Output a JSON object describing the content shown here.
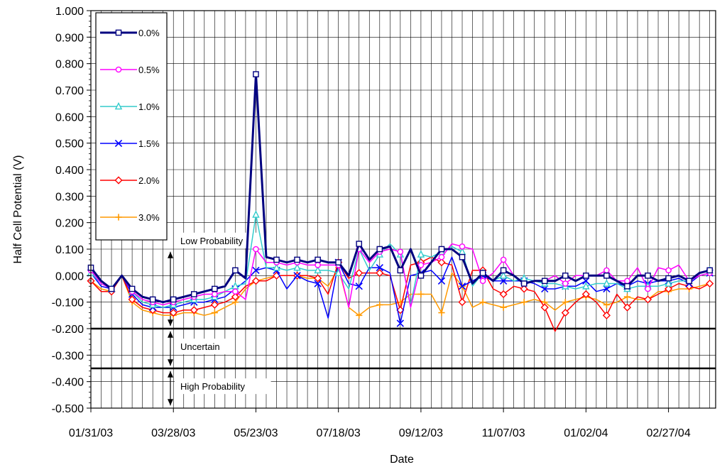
{
  "chart_data": {
    "type": "line",
    "xlabel": "Date",
    "ylabel": "Half Cell Potential (V)",
    "xlim": [
      "2003-01-31",
      "2004-03-30"
    ],
    "ylim": [
      -0.5,
      1.0
    ],
    "y_ticks": [
      "1.000",
      "0.900",
      "0.800",
      "0.700",
      "0.600",
      "0.500",
      "0.400",
      "0.300",
      "0.200",
      "0.100",
      "0.000",
      "-0.100",
      "-0.200",
      "-0.300",
      "-0.400",
      "-0.500"
    ],
    "x_ticks": [
      "01/31/03",
      "03/28/03",
      "05/23/03",
      "07/18/03",
      "09/12/03",
      "11/07/03",
      "01/02/04",
      "02/27/04"
    ],
    "x_tick_dates": [
      "2003-01-31",
      "2003-03-28",
      "2003-05-23",
      "2003-07-18",
      "2003-09-12",
      "2003-11-07",
      "2004-01-02",
      "2004-02-27"
    ],
    "grid": "vertical major and minor gridlines, horizontal major gridlines",
    "legend": {
      "placement": "top-left inside plot"
    },
    "thresholds": [
      {
        "value": -0.2,
        "kind": "threshold line"
      },
      {
        "value": -0.35,
        "kind": "threshold line"
      }
    ],
    "annotations": [
      {
        "text": "Low Probability",
        "y": 0.13
      },
      {
        "text": "Uncertain",
        "y": -0.27
      },
      {
        "text": "High Probability",
        "y": -0.42
      }
    ],
    "x": [
      "2003-01-31",
      "2003-02-07",
      "2003-02-14",
      "2003-02-21",
      "2003-02-28",
      "2003-03-07",
      "2003-03-14",
      "2003-03-21",
      "2003-03-28",
      "2003-04-04",
      "2003-04-11",
      "2003-04-18",
      "2003-04-25",
      "2003-05-02",
      "2003-05-09",
      "2003-05-16",
      "2003-05-23",
      "2003-05-30",
      "2003-06-06",
      "2003-06-13",
      "2003-06-20",
      "2003-06-27",
      "2003-07-04",
      "2003-07-11",
      "2003-07-18",
      "2003-07-25",
      "2003-08-01",
      "2003-08-08",
      "2003-08-15",
      "2003-08-22",
      "2003-08-29",
      "2003-09-05",
      "2003-09-12",
      "2003-09-19",
      "2003-09-26",
      "2003-10-03",
      "2003-10-10",
      "2003-10-17",
      "2003-10-24",
      "2003-10-31",
      "2003-11-07",
      "2003-11-14",
      "2003-11-21",
      "2003-11-28",
      "2003-12-05",
      "2003-12-12",
      "2003-12-19",
      "2003-12-26",
      "2004-01-02",
      "2004-01-09",
      "2004-01-16",
      "2004-01-23",
      "2004-01-30",
      "2004-02-06",
      "2004-02-13",
      "2004-02-20",
      "2004-02-27",
      "2004-03-05",
      "2004-03-12",
      "2004-03-19",
      "2004-03-26"
    ],
    "series": [
      {
        "name": "0.0%",
        "color": "#000080",
        "marker": "square",
        "values": [
          0.03,
          -0.02,
          -0.05,
          0.0,
          -0.05,
          -0.08,
          -0.09,
          -0.1,
          -0.09,
          -0.08,
          -0.07,
          -0.06,
          -0.05,
          -0.04,
          0.02,
          -0.01,
          0.76,
          0.07,
          0.06,
          0.05,
          0.06,
          0.05,
          0.06,
          0.05,
          0.05,
          0.0,
          0.12,
          0.06,
          0.1,
          0.11,
          0.02,
          0.1,
          0.0,
          0.05,
          0.1,
          0.1,
          0.07,
          -0.03,
          0.01,
          -0.02,
          0.02,
          0.0,
          -0.03,
          -0.02,
          -0.02,
          -0.02,
          0.0,
          -0.02,
          0.0,
          0.0,
          0.0,
          -0.02,
          -0.04,
          0.0,
          0.0,
          -0.02,
          -0.01,
          0.0,
          -0.02,
          0.01,
          0.02
        ]
      },
      {
        "name": "0.5%",
        "color": "#FF00FF",
        "marker": "circle",
        "values": [
          0.02,
          -0.03,
          -0.05,
          0.0,
          -0.06,
          -0.09,
          -0.1,
          -0.11,
          -0.1,
          -0.09,
          -0.08,
          -0.07,
          -0.07,
          -0.06,
          -0.06,
          -0.09,
          0.1,
          0.05,
          0.05,
          0.04,
          0.05,
          0.04,
          0.04,
          0.04,
          0.04,
          -0.12,
          0.1,
          0.05,
          0.09,
          0.1,
          0.09,
          -0.12,
          0.04,
          0.05,
          0.07,
          0.12,
          0.11,
          0.1,
          -0.02,
          0.01,
          0.06,
          0.0,
          -0.03,
          -0.02,
          -0.02,
          0.0,
          -0.03,
          0.0,
          0.0,
          0.0,
          0.02,
          -0.02,
          -0.02,
          0.03,
          -0.05,
          0.03,
          0.02,
          0.04,
          -0.02,
          0.0,
          0.01
        ]
      },
      {
        "name": "1.0%",
        "color": "#33CCCC",
        "marker": "triangle",
        "values": [
          0.01,
          -0.03,
          -0.05,
          0.0,
          -0.06,
          -0.1,
          -0.11,
          -0.12,
          -0.11,
          -0.1,
          -0.09,
          -0.09,
          -0.08,
          -0.06,
          -0.04,
          -0.03,
          0.23,
          0.03,
          0.03,
          0.02,
          0.03,
          0.02,
          0.02,
          0.02,
          0.01,
          -0.05,
          0.1,
          0.02,
          0.08,
          0.12,
          0.08,
          -0.11,
          0.08,
          0.07,
          0.09,
          0.11,
          0.09,
          -0.04,
          0.01,
          -0.02,
          0.0,
          -0.02,
          -0.01,
          -0.02,
          -0.03,
          -0.03,
          -0.04,
          -0.05,
          -0.04,
          -0.03,
          -0.03,
          -0.03,
          -0.05,
          -0.04,
          -0.04,
          -0.04,
          -0.03,
          -0.02,
          -0.02,
          0.01,
          0.02
        ]
      },
      {
        "name": "1.5%",
        "color": "#0000FF",
        "marker": "x",
        "values": [
          0.01,
          -0.04,
          -0.05,
          0.0,
          -0.07,
          -0.11,
          -0.12,
          -0.12,
          -0.12,
          -0.11,
          -0.1,
          -0.1,
          -0.09,
          -0.08,
          -0.05,
          -0.02,
          0.02,
          0.03,
          0.02,
          -0.05,
          0.0,
          -0.02,
          -0.03,
          -0.16,
          0.05,
          -0.03,
          -0.04,
          0.03,
          0.03,
          0.01,
          -0.18,
          0.0,
          0.01,
          0.02,
          -0.02,
          0.07,
          -0.04,
          -0.02,
          0.0,
          -0.02,
          -0.02,
          -0.02,
          -0.02,
          -0.03,
          -0.05,
          -0.05,
          -0.04,
          -0.04,
          -0.02,
          -0.06,
          -0.05,
          -0.03,
          -0.04,
          -0.02,
          -0.03,
          -0.02,
          -0.02,
          -0.01,
          -0.03,
          0.0,
          0.01
        ]
      },
      {
        "name": "2.0%",
        "color": "#FF0000",
        "marker": "diamond",
        "values": [
          -0.02,
          -0.06,
          -0.06,
          0.0,
          -0.09,
          -0.12,
          -0.13,
          -0.14,
          -0.14,
          -0.13,
          -0.13,
          -0.12,
          -0.11,
          -0.1,
          -0.08,
          -0.04,
          -0.02,
          -0.02,
          0.0,
          0.0,
          0.0,
          0.0,
          -0.01,
          -0.07,
          0.05,
          -0.01,
          0.01,
          0.01,
          0.01,
          0.0,
          -0.13,
          0.04,
          0.05,
          0.07,
          0.05,
          0.04,
          -0.1,
          0.02,
          0.02,
          -0.05,
          -0.07,
          -0.04,
          -0.05,
          -0.06,
          -0.12,
          -0.21,
          -0.14,
          -0.1,
          -0.07,
          -0.1,
          -0.15,
          -0.07,
          -0.12,
          -0.08,
          -0.09,
          -0.07,
          -0.05,
          -0.03,
          -0.04,
          -0.05,
          -0.03
        ]
      },
      {
        "name": "3.0%",
        "color": "#FF9900",
        "marker": "plus",
        "values": [
          -0.02,
          -0.05,
          -0.06,
          0.0,
          -0.1,
          -0.13,
          -0.14,
          -0.15,
          -0.15,
          -0.14,
          -0.14,
          -0.15,
          -0.14,
          -0.12,
          -0.1,
          -0.05,
          -0.02,
          -0.01,
          0.0,
          0.0,
          0.0,
          -0.01,
          -0.01,
          -0.04,
          0.03,
          -0.12,
          -0.15,
          -0.12,
          -0.11,
          -0.11,
          -0.1,
          -0.07,
          -0.07,
          -0.07,
          -0.14,
          0.01,
          -0.04,
          -0.12,
          -0.1,
          -0.11,
          -0.12,
          -0.11,
          -0.1,
          -0.09,
          -0.1,
          -0.13,
          -0.1,
          -0.09,
          -0.08,
          -0.09,
          -0.11,
          -0.1,
          -0.08,
          -0.09,
          -0.09,
          -0.06,
          -0.06,
          -0.05,
          -0.05,
          -0.04,
          -0.03
        ]
      }
    ]
  }
}
